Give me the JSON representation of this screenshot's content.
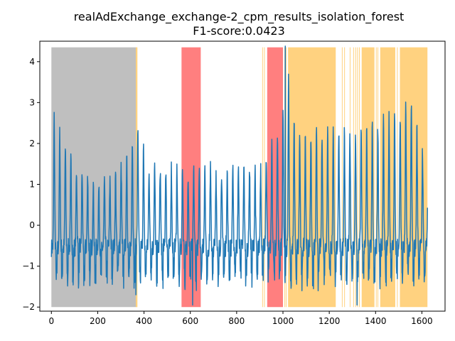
{
  "chart_data": {
    "type": "line",
    "title": "realAdExchange_exchange-2_cpm_results_isolation_forest",
    "subtitle": "F1-score:0.0423",
    "xlabel": "",
    "ylabel": "",
    "xlim": [
      -50,
      1700
    ],
    "ylim": [
      -2.1,
      4.5
    ],
    "x_ticks": [
      0,
      200,
      400,
      600,
      800,
      1000,
      1200,
      1400,
      1600
    ],
    "y_ticks": [
      -2,
      -1,
      0,
      1,
      2,
      3,
      4
    ],
    "grid": false,
    "colors": {
      "line": "#1f77b4",
      "training_region": "#bfbfbf",
      "labeled_anomaly": "#ff7f7f",
      "detected_anomaly": "#ffd280"
    },
    "shaded_regions": {
      "training": [
        [
          0,
          365
        ]
      ],
      "labeled_anomaly": [
        [
          562,
          645
        ],
        [
          932,
          1000
        ]
      ],
      "detected_anomaly_spans": [
        [
          1022,
          1228
        ],
        [
          1340,
          1395
        ],
        [
          1420,
          1485
        ],
        [
          1505,
          1624
        ]
      ],
      "detected_anomaly_lines": [
        366,
        368,
        370,
        912,
        920,
        1008,
        1014,
        1256,
        1266,
        1290,
        1305,
        1314,
        1322,
        1330,
        1403,
        1410,
        1494
      ]
    },
    "series": [
      {
        "type": "periodic-signal",
        "x_start": 0,
        "x_end": 1624,
        "n_points": 1625,
        "period": 24.1,
        "baseline": -0.55,
        "peak_amplitude": [
          [
            0,
            2.8
          ],
          [
            20,
            2.5
          ],
          [
            50,
            2.0
          ],
          [
            100,
            1.4
          ],
          [
            150,
            1.2
          ],
          [
            200,
            0.9
          ],
          [
            250,
            1.1
          ],
          [
            300,
            1.4
          ],
          [
            350,
            2.2
          ],
          [
            365,
            2.6
          ],
          [
            420,
            1.4
          ],
          [
            500,
            1.4
          ],
          [
            560,
            1.4
          ],
          [
            600,
            1.2
          ],
          [
            650,
            1.6
          ],
          [
            700,
            1.3
          ],
          [
            800,
            1.4
          ],
          [
            900,
            1.4
          ],
          [
            1000,
            2.6
          ],
          [
            1010,
            4.4
          ],
          [
            1050,
            2.4
          ],
          [
            1100,
            2.1
          ],
          [
            1200,
            2.4
          ],
          [
            1300,
            2.2
          ],
          [
            1400,
            2.4
          ],
          [
            1500,
            2.7
          ],
          [
            1550,
            3.0
          ],
          [
            1624,
            1.4
          ]
        ],
        "trough_min": -1.6,
        "notable_points": [
          {
            "x": 365,
            "y": -1.7
          },
          {
            "x": 610,
            "y": -1.95
          },
          {
            "x": 1010,
            "y": 4.38
          },
          {
            "x": 1320,
            "y": -1.95
          }
        ]
      }
    ]
  }
}
